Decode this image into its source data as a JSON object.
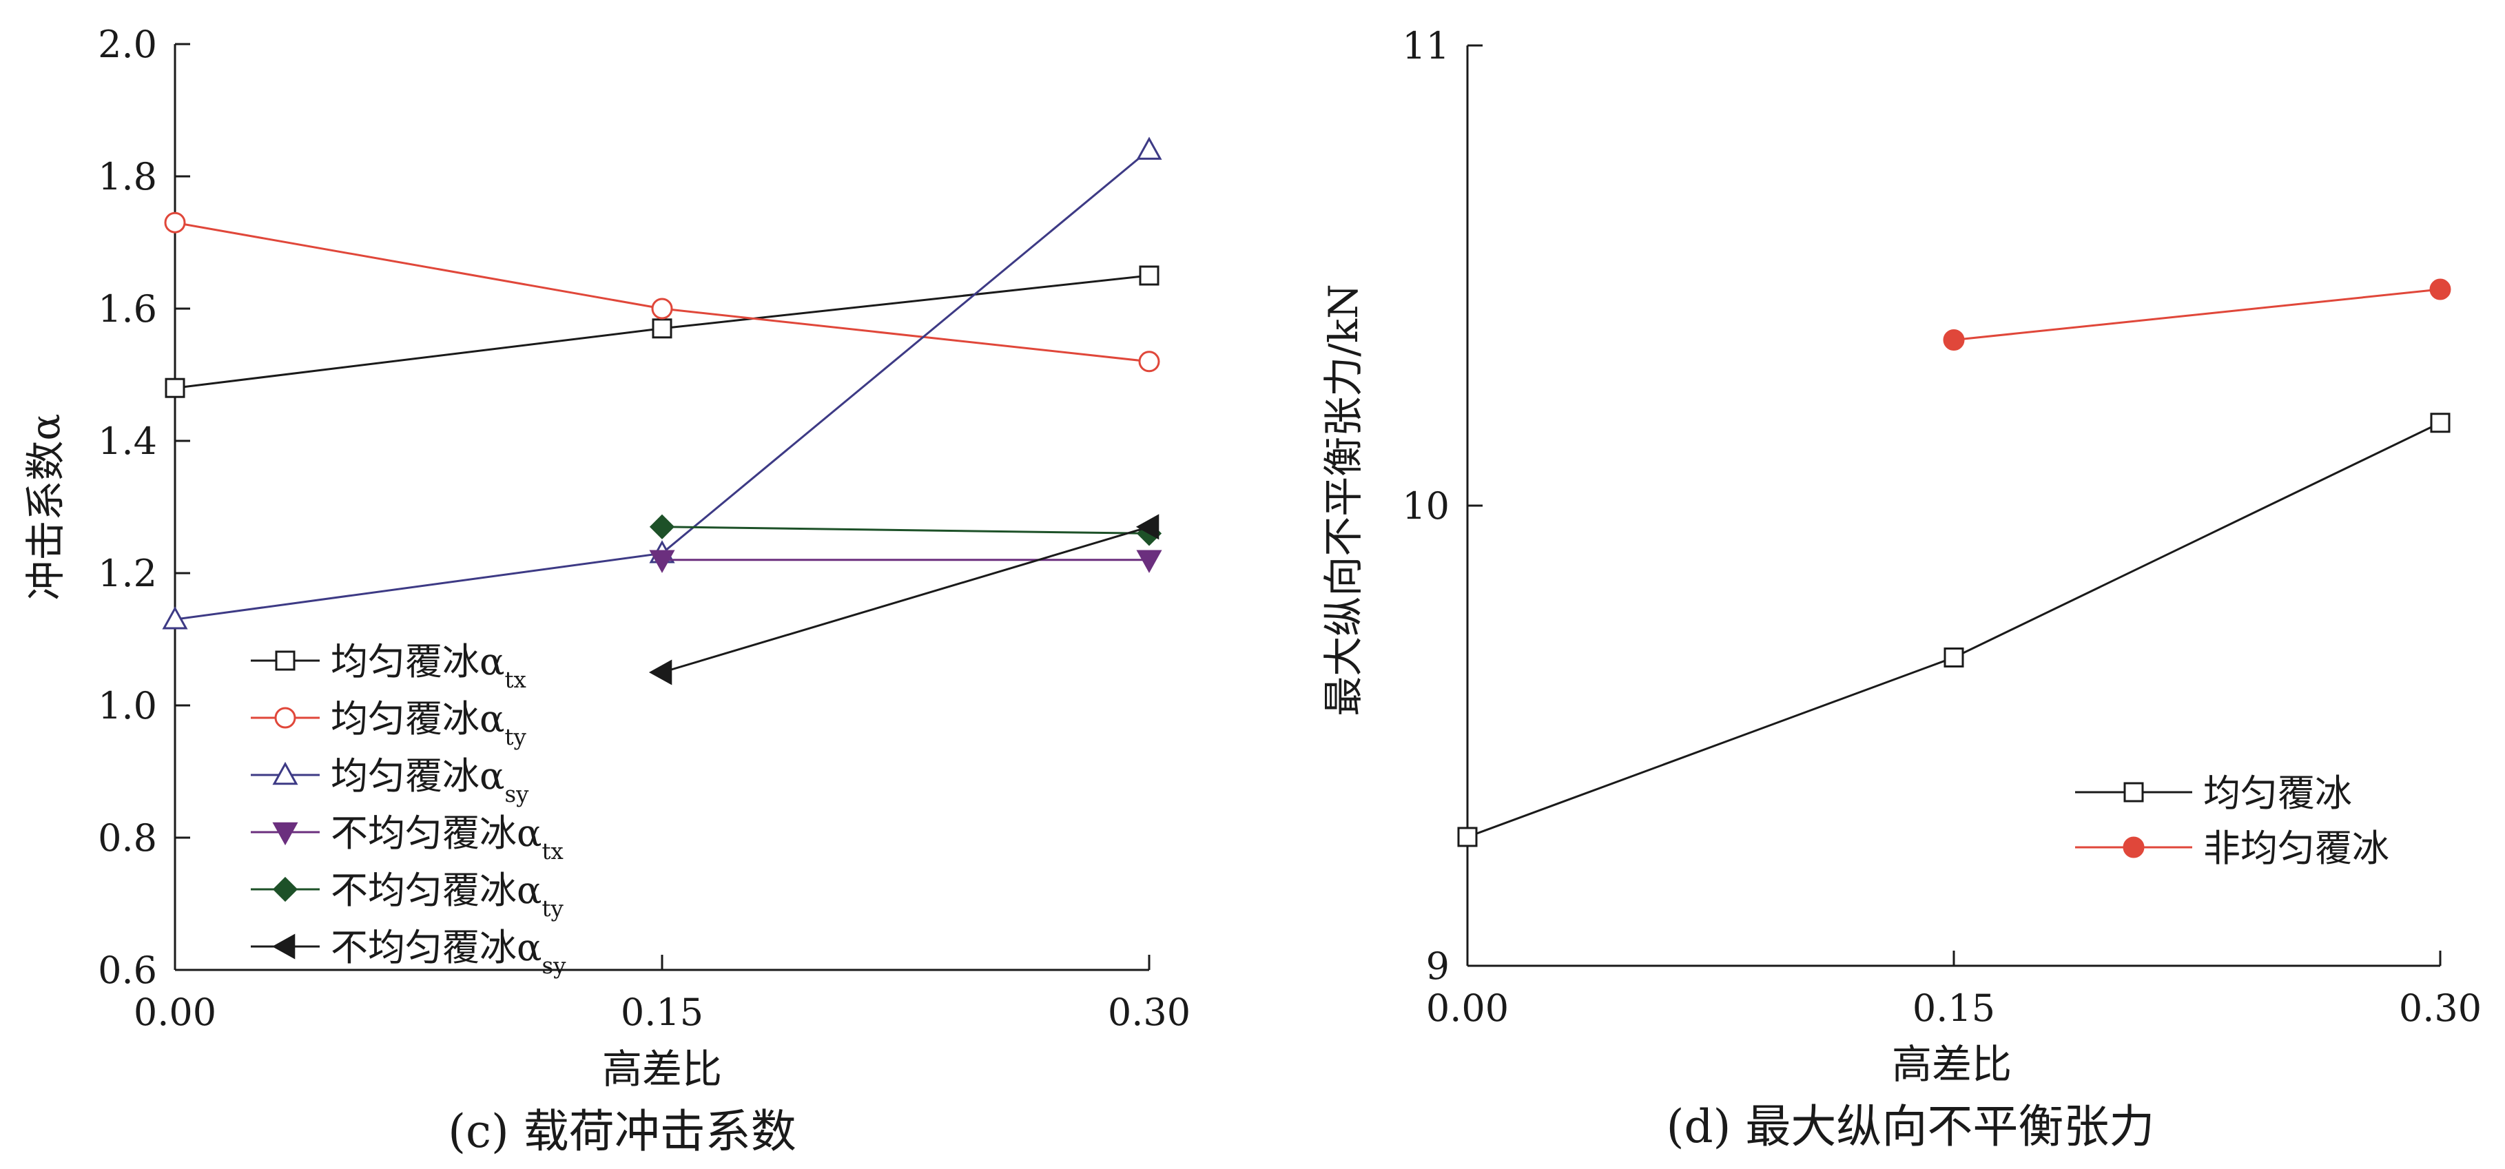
{
  "chart_data": [
    {
      "type": "line",
      "caption": "(c) 载荷冲击系数",
      "xlabel": "高差比",
      "ylabel": "冲击系数α",
      "x": [
        0.0,
        0.15,
        0.3
      ],
      "xticks": [
        "0.00",
        "0.15",
        "0.30"
      ],
      "ylim": [
        0.6,
        2.0
      ],
      "yticks": [
        "0.6",
        "0.8",
        "1.0",
        "1.2",
        "1.4",
        "1.6",
        "1.8",
        "2.0"
      ],
      "grid": false,
      "legend_position": "bottom-left",
      "series": [
        {
          "name": "均匀覆冰α",
          "sub": "tx",
          "color": "#1a1a1a",
          "marker": "square-open",
          "x": [
            0.0,
            0.15,
            0.3
          ],
          "values": [
            1.48,
            1.57,
            1.65
          ]
        },
        {
          "name": "均匀覆冰α",
          "sub": "ty",
          "color": "#e0473a",
          "marker": "circle-open",
          "x": [
            0.0,
            0.15,
            0.3
          ],
          "values": [
            1.73,
            1.6,
            1.52
          ]
        },
        {
          "name": "均匀覆冰α",
          "sub": "sy",
          "color": "#3d3a85",
          "marker": "triangle-up-open",
          "x": [
            0.0,
            0.15,
            0.3
          ],
          "values": [
            1.13,
            1.23,
            1.84
          ]
        },
        {
          "name": "不均匀覆冰α",
          "sub": "tx",
          "color": "#6b2f7e",
          "marker": "triangle-down-filled",
          "x": [
            0.15,
            0.3
          ],
          "values": [
            1.22,
            1.22
          ]
        },
        {
          "name": "不均匀覆冰α",
          "sub": "ty",
          "color": "#1d5128",
          "marker": "diamond-filled",
          "x": [
            0.15,
            0.3
          ],
          "values": [
            1.27,
            1.26
          ]
        },
        {
          "name": "不均匀覆冰α",
          "sub": "sy",
          "color": "#1a1a1a",
          "marker": "triangle-left-filled",
          "x": [
            0.15,
            0.3
          ],
          "values": [
            1.05,
            1.27
          ]
        }
      ]
    },
    {
      "type": "line",
      "caption": "(d) 最大纵向不平衡张力",
      "xlabel": "高差比",
      "ylabel": "最大纵向不平衡张力/kN",
      "x": [
        0.0,
        0.15,
        0.3
      ],
      "xticks": [
        "0.00",
        "0.15",
        "0.30"
      ],
      "ylim": [
        9,
        11
      ],
      "yticks": [
        "9",
        "10",
        "11"
      ],
      "grid": false,
      "legend_position": "bottom-right",
      "series": [
        {
          "name": "均匀覆冰",
          "color": "#1a1a1a",
          "marker": "square-open",
          "x": [
            0.0,
            0.15,
            0.3
          ],
          "values": [
            9.28,
            9.67,
            10.18
          ]
        },
        {
          "name": "非均匀覆冰",
          "color": "#e0473a",
          "marker": "circle-filled",
          "x": [
            0.15,
            0.3
          ],
          "values": [
            10.36,
            10.47
          ]
        }
      ]
    }
  ]
}
